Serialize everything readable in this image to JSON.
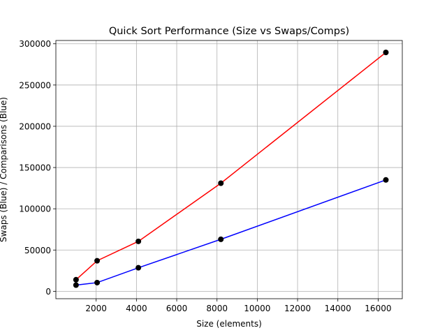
{
  "chart_data": {
    "type": "line",
    "title": "Quick Sort Performance (Size vs Swaps/Comps)",
    "xlabel": "Size (elements)",
    "ylabel": "Swaps (Blue) / Comparisons (Blue)",
    "xlim": [
      0,
      17200
    ],
    "ylim": [
      -9000,
      304000
    ],
    "xticks": [
      2000,
      4000,
      6000,
      8000,
      10000,
      12000,
      14000,
      16000
    ],
    "yticks": [
      0,
      50000,
      100000,
      150000,
      200000,
      250000,
      300000
    ],
    "grid": true,
    "x": [
      1000,
      2048,
      4096,
      8192,
      16384
    ],
    "series": [
      {
        "color": "#ff0000",
        "values": [
          14000,
          37000,
          60500,
          131000,
          289500
        ]
      },
      {
        "color": "#0000ff",
        "values": [
          7500,
          10500,
          28500,
          63000,
          135000
        ]
      }
    ],
    "marker_color": "#000000"
  }
}
